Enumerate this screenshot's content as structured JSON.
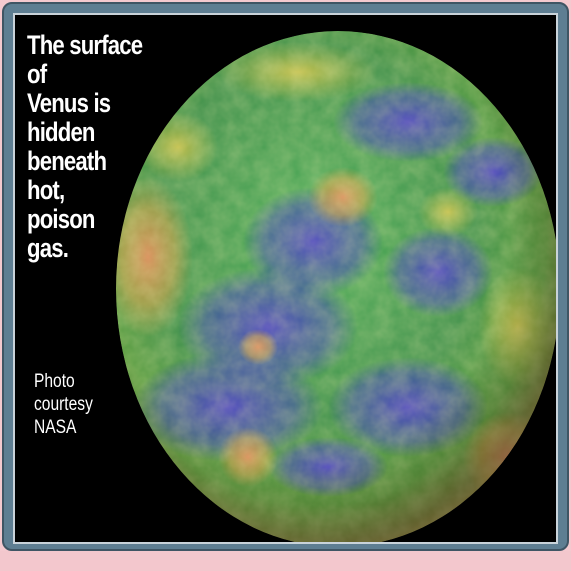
{
  "caption": {
    "headline": "The surface of\n Venus is\nhidden\nbeneath\nhot,\npoison\ngas.",
    "credit": "Photo\ncourtesy\nNASA"
  },
  "image": {
    "subject": "venus-globe",
    "colors": {
      "frame": "#5e7e92",
      "background": "#000000",
      "lowland": "#3d3fb8",
      "plain": "#3aa65c",
      "highland": "#d9a24a",
      "peak": "#e07a5a"
    }
  }
}
